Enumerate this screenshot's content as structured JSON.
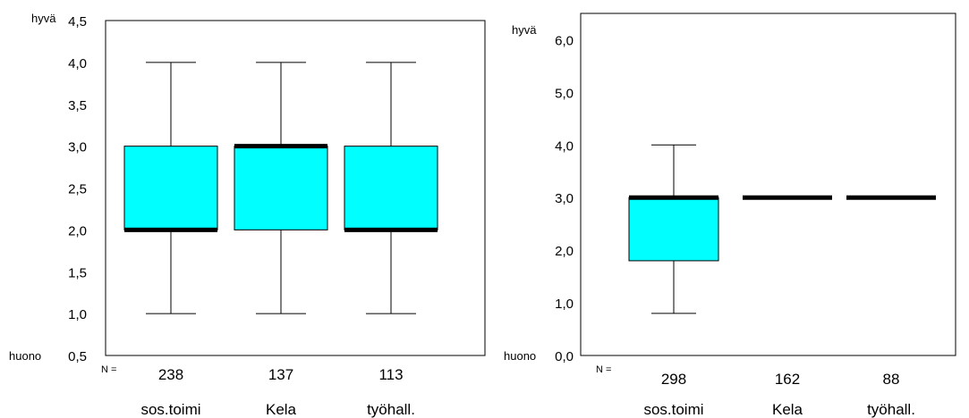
{
  "chart_data": [
    {
      "type": "boxplot",
      "y_range": [
        0.5,
        4.5
      ],
      "yticks": [
        "0,5",
        "1,0",
        "1,5",
        "2,0",
        "2,5",
        "3,0",
        "3,5",
        "4,0",
        "4,5"
      ],
      "y_top_label": "hyvä",
      "y_bottom_label": "huono",
      "n_label": "N =",
      "categories": [
        "sos.toimi",
        "Kela",
        "työhall."
      ],
      "counts": [
        "238",
        "137",
        "113"
      ],
      "boxes": [
        {
          "min": 1.0,
          "q1": 2.0,
          "median": 2.0,
          "q3": 3.0,
          "max": 4.0
        },
        {
          "min": 1.0,
          "q1": 2.0,
          "median": 3.0,
          "q3": 3.0,
          "max": 4.0
        },
        {
          "min": 1.0,
          "q1": 2.0,
          "median": 2.0,
          "q3": 3.0,
          "max": 4.0
        }
      ],
      "box_color": "#00FFFF",
      "median_color": "#000000"
    },
    {
      "type": "boxplot",
      "y_range": [
        0.0,
        6.5
      ],
      "yticks": [
        "0,0",
        "1,0",
        "2,0",
        "3,0",
        "4,0",
        "5,0",
        "6,0"
      ],
      "y_top_label": "hyvä",
      "y_bottom_label": "huono",
      "n_label": "N =",
      "categories": [
        "sos.toimi",
        "Kela",
        "työhall."
      ],
      "counts": [
        "298",
        "162",
        "88"
      ],
      "boxes": [
        {
          "min": 0.8,
          "q1": 1.8,
          "median": 3.0,
          "q3": 3.0,
          "max": 4.0
        },
        {
          "min": 3.0,
          "q1": 3.0,
          "median": 3.0,
          "q3": 3.0,
          "max": 3.0
        },
        {
          "min": 3.0,
          "q1": 3.0,
          "median": 3.0,
          "q3": 3.0,
          "max": 3.0
        }
      ],
      "box_color": "#00FFFF",
      "median_color": "#000000"
    }
  ]
}
